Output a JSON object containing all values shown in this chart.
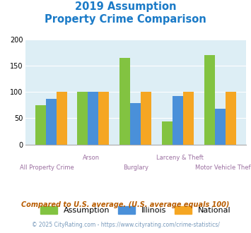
{
  "title_line1": "2019 Assumption",
  "title_line2": "Property Crime Comparison",
  "title_color": "#1a7ac7",
  "categories": [
    "All Property Crime",
    "Arson",
    "Burglary",
    "Larceny & Theft",
    "Motor Vehicle Theft"
  ],
  "assumption_values": [
    75,
    100,
    165,
    44,
    170
  ],
  "illinois_values": [
    87,
    100,
    79,
    93,
    68
  ],
  "national_values": [
    100,
    100,
    100,
    100,
    100
  ],
  "assumption_color": "#82c341",
  "illinois_color": "#4a90d9",
  "national_color": "#f5a623",
  "ylim": [
    0,
    200
  ],
  "yticks": [
    0,
    50,
    100,
    150,
    200
  ],
  "bg_color": "#ddeef5",
  "legend_labels": [
    "Assumption",
    "Illinois",
    "National"
  ],
  "xlabel_color": "#9b6fa0",
  "footnote1": "Compared to U.S. average. (U.S. average equals 100)",
  "footnote2": "© 2025 CityRating.com - https://www.cityrating.com/crime-statistics/",
  "footnote1_color": "#b85c00",
  "footnote2_color": "#5588bb",
  "footnote2_left": "© 2025 CityRating.com - ",
  "footnote2_link": "https://www.cityrating.com/crime-statistics/"
}
